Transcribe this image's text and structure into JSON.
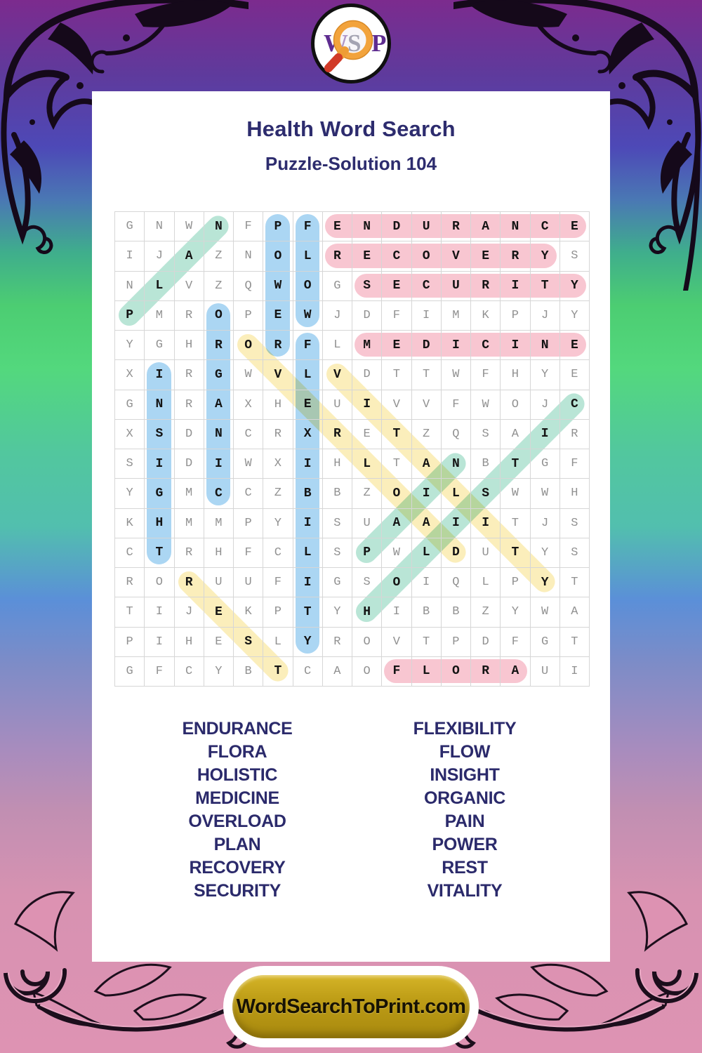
{
  "logo": {
    "letters": [
      "W",
      "S",
      "P"
    ]
  },
  "header": {
    "title": "Health Word Search",
    "subtitle": "Puzzle-Solution 104"
  },
  "grid": {
    "size": 16,
    "rows": [
      "GNWNFPFENDURANCE",
      "IJAZNOLRECOVERYS",
      "NLVZQWOGSECURITY",
      "PMROPEWJDFIMKPJY",
      "YGHRORFLMEDICINE",
      "XIRGWVLVDTTWFHYE",
      "GNRAXHEUIVVFWOJC",
      "XSDNCRXRETZQSAIR",
      "SIDIWXIHLTANBTGF",
      "YGMCCZBBZOILSWWH",
      "KHMMPYISUAAIITJS",
      "CTRHFCLSPWLDUTYS",
      "RORUUFIGSOIQLPYT",
      "TIJEKPTYHIBBZYWA",
      "PIHESLYROVTPDFGT",
      "GFCYBTCAOFLORAUI"
    ]
  },
  "highlight_colors": {
    "pink": "#f8c6d1",
    "blue": "#abd6f3",
    "yellow": "#fbeebb",
    "teal": "#b9e5d6"
  },
  "solutions": [
    {
      "word": "ENDURANCE",
      "row": 1,
      "col": 8,
      "dir": "right",
      "color": "pink"
    },
    {
      "word": "RECOVERY",
      "row": 2,
      "col": 8,
      "dir": "right",
      "color": "pink"
    },
    {
      "word": "SECURITY",
      "row": 3,
      "col": 9,
      "dir": "right",
      "color": "pink"
    },
    {
      "word": "MEDICINE",
      "row": 5,
      "col": 9,
      "dir": "right",
      "color": "pink"
    },
    {
      "word": "FLORA",
      "row": 16,
      "col": 10,
      "dir": "right",
      "color": "pink"
    },
    {
      "word": "POWER",
      "row": 1,
      "col": 6,
      "dir": "down",
      "color": "blue"
    },
    {
      "word": "FLOW",
      "row": 1,
      "col": 7,
      "dir": "down",
      "color": "blue"
    },
    {
      "word": "ORGANIC",
      "row": 4,
      "col": 4,
      "dir": "down",
      "color": "blue"
    },
    {
      "word": "INSIGHT",
      "row": 6,
      "col": 2,
      "dir": "down",
      "color": "blue"
    },
    {
      "word": "FLEXIBILITY",
      "row": 5,
      "col": 7,
      "dir": "down",
      "color": "blue"
    },
    {
      "word": "PLAN",
      "row": 4,
      "col": 1,
      "dir": "up-right",
      "color": "teal"
    },
    {
      "word": "HOLISTIC",
      "row": 14,
      "col": 9,
      "dir": "up-right",
      "color": "teal"
    },
    {
      "word": "PAIN",
      "row": 12,
      "col": 9,
      "dir": "up-right",
      "color": "teal"
    },
    {
      "word": "OVERLOAD",
      "row": 5,
      "col": 5,
      "dir": "down-right",
      "color": "yellow"
    },
    {
      "word": "VITALITY",
      "row": 6,
      "col": 8,
      "dir": "down-right",
      "color": "yellow"
    },
    {
      "word": "REST",
      "row": 13,
      "col": 3,
      "dir": "down-right",
      "color": "yellow"
    }
  ],
  "word_list": {
    "left": [
      "ENDURANCE",
      "FLORA",
      "HOLISTIC",
      "MEDICINE",
      "OVERLOAD",
      "PLAN",
      "RECOVERY",
      "SECURITY"
    ],
    "right": [
      "FLEXIBILITY",
      "FLOW",
      "INSIGHT",
      "ORGANIC",
      "PAIN",
      "POWER",
      "REST",
      "VITALITY"
    ]
  },
  "footer": {
    "button_label": "WordSearchToPrint.com"
  }
}
